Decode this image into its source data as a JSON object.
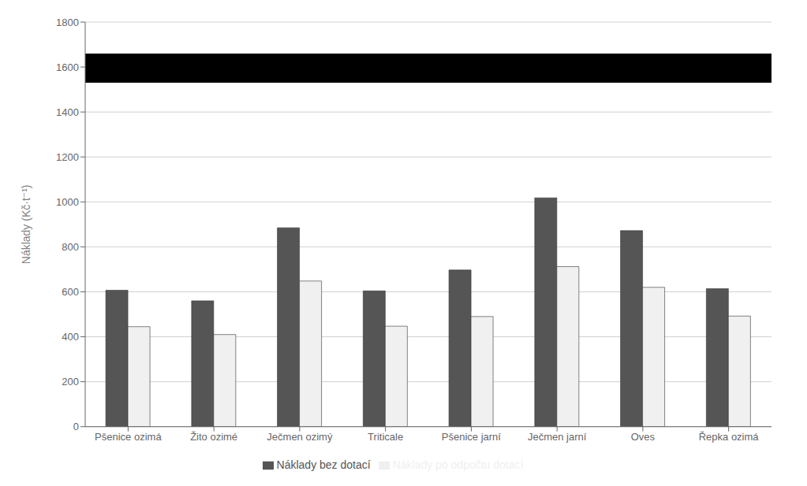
{
  "chart_data": {
    "type": "bar",
    "categories": [
      "Pšenice ozimá",
      "Žito ozimé",
      "Ječmen ozimý",
      "Triticale",
      "Pšenice jarní",
      "Ječmen jarní",
      "Oves",
      "Řepka ozimá"
    ],
    "series": [
      {
        "name": "Náklady bez dotací",
        "color": "#555555",
        "values": [
          607,
          560,
          885,
          604,
          697,
          1018,
          872,
          614
        ]
      },
      {
        "name": "Náklady po odpočtu dotací",
        "color": "#f0f0f0",
        "values": [
          445,
          410,
          648,
          447,
          490,
          712,
          620,
          492
        ]
      }
    ],
    "ylabel": "Náklady (Kč·t⁻¹)",
    "ylim": [
      0,
      1800
    ],
    "yticks": [
      0,
      200,
      400,
      600,
      800,
      1000,
      1200,
      1400,
      1600,
      1800
    ],
    "grid": true,
    "legend": "bottom",
    "reference_band": {
      "from": 1530,
      "to": 1660,
      "color": "#000000"
    }
  }
}
